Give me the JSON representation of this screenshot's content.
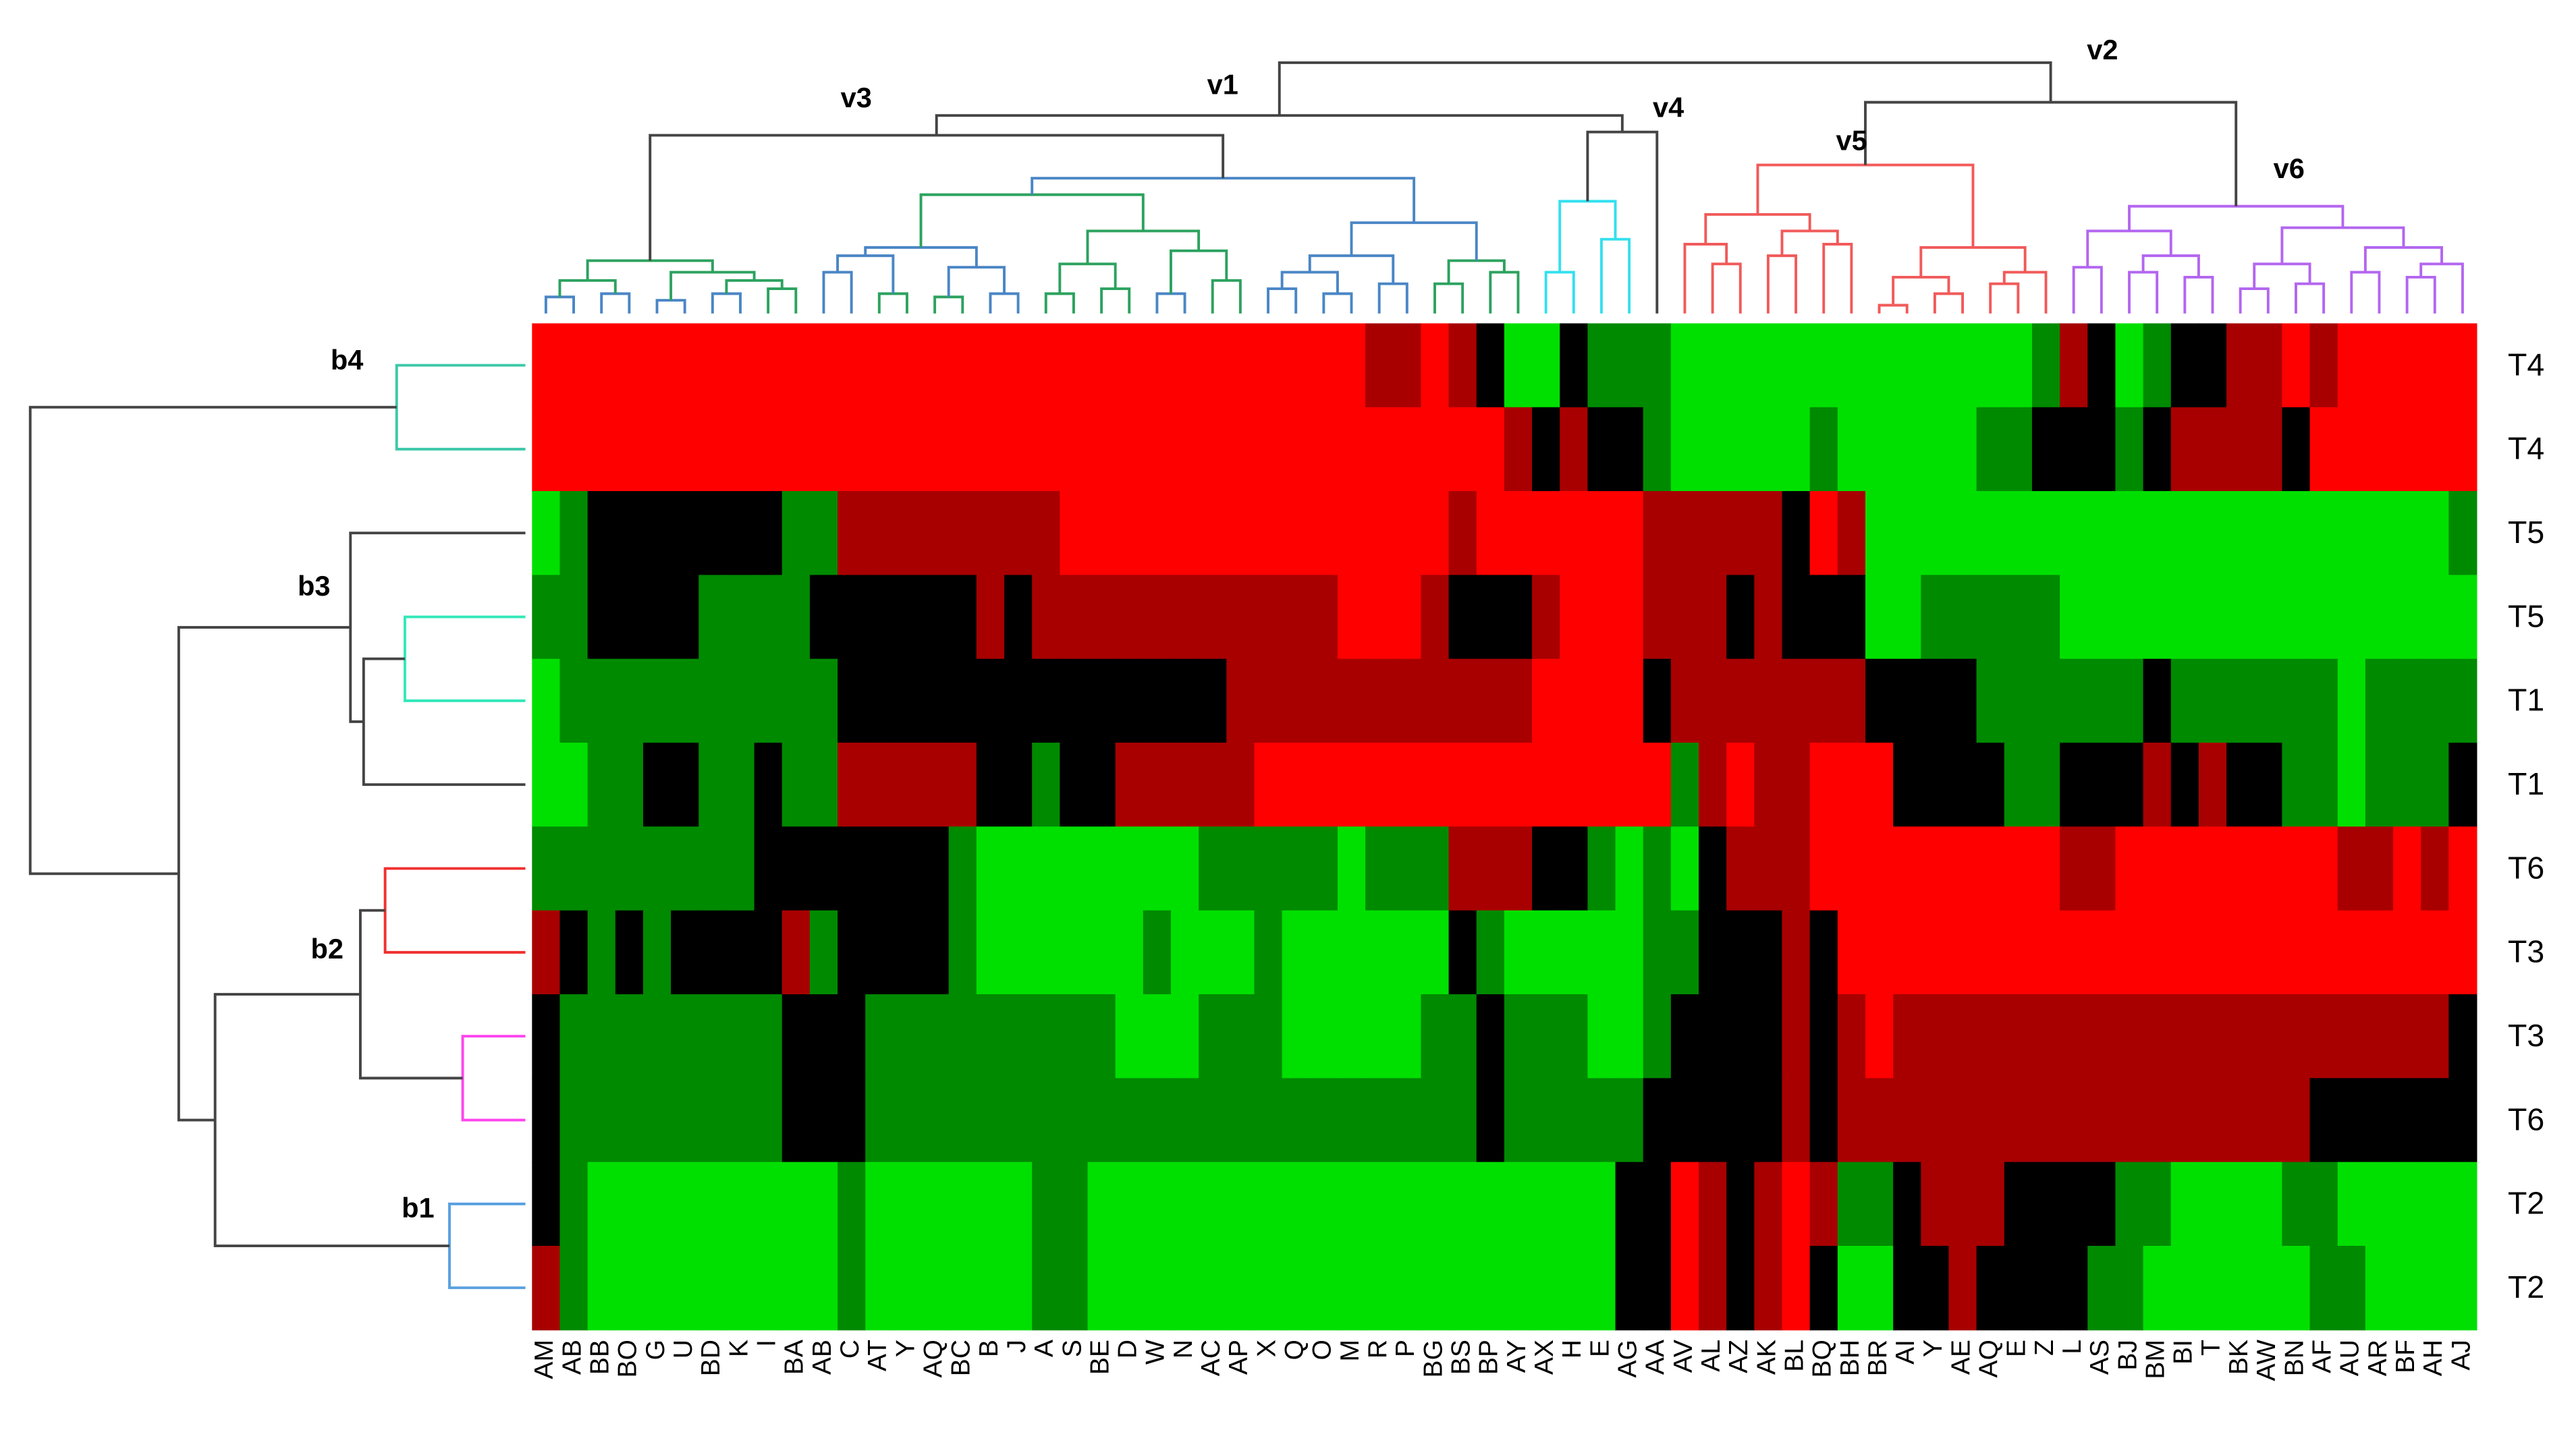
{
  "chart_data": {
    "type": "heatmap",
    "rows": [
      "T4",
      "T4",
      "T5",
      "T5",
      "T1",
      "T1",
      "T6",
      "T3",
      "T3",
      "T6",
      "T2",
      "T2"
    ],
    "columns": [
      "AM",
      "AB",
      "BB",
      "BO",
      "G",
      "U",
      "BD",
      "K",
      "I",
      "BA",
      "AB",
      "C",
      "AT",
      "Y",
      "AQ",
      "BC",
      "B",
      "J",
      "A",
      "S",
      "BE",
      "D",
      "W",
      "N",
      "AC",
      "AP",
      "X",
      "Q",
      "O",
      "M",
      "R",
      "P",
      "BG",
      "BS",
      "BP",
      "AY",
      "AX",
      "H",
      "E",
      "AG",
      "AA",
      "AV",
      "AL",
      "AZ",
      "AK",
      "BL",
      "BQ",
      "BH",
      "BR",
      "AI",
      "Y",
      "AE",
      "AQ",
      "E",
      "Z",
      "L",
      "AS",
      "BJ",
      "BM",
      "BI",
      "T",
      "BK",
      "AW",
      "BN",
      "AF",
      "AU",
      "AR",
      "BF",
      "AH",
      "AJ"
    ],
    "values": [
      [
        2,
        2,
        2,
        2,
        2,
        2,
        2,
        2,
        2,
        2,
        2,
        2,
        2,
        2,
        2,
        2,
        2,
        2,
        2,
        2,
        2,
        2,
        2,
        2,
        2,
        2,
        2,
        2,
        2,
        2,
        1,
        1,
        2,
        1,
        0,
        -2,
        -2,
        0,
        -1,
        -1,
        -1,
        -2,
        -2,
        -2,
        -2,
        -2,
        -2,
        -2,
        -2,
        -2,
        -2,
        -2,
        -2,
        -2,
        -1,
        1,
        0,
        -2,
        -1,
        0,
        0,
        1,
        1,
        2,
        1,
        2,
        2,
        2,
        2,
        2
      ],
      [
        2,
        2,
        2,
        2,
        2,
        2,
        2,
        2,
        2,
        2,
        2,
        2,
        2,
        2,
        2,
        2,
        2,
        2,
        2,
        2,
        2,
        2,
        2,
        2,
        2,
        2,
        2,
        2,
        2,
        2,
        2,
        2,
        2,
        2,
        2,
        1,
        0,
        1,
        0,
        0,
        -1,
        -2,
        -2,
        -2,
        -2,
        -2,
        -1,
        -2,
        -2,
        -2,
        -2,
        -2,
        -1,
        -1,
        0,
        0,
        0,
        -1,
        0,
        1,
        1,
        1,
        1,
        0,
        2,
        2,
        2,
        2,
        2,
        2
      ],
      [
        -2,
        -1,
        0,
        0,
        0,
        0,
        0,
        0,
        0,
        -1,
        -1,
        1,
        1,
        1,
        1,
        1,
        1,
        1,
        1,
        2,
        2,
        2,
        2,
        2,
        2,
        2,
        2,
        2,
        2,
        2,
        2,
        2,
        2,
        1,
        2,
        2,
        2,
        2,
        2,
        2,
        1,
        1,
        1,
        1,
        1,
        0,
        2,
        1,
        -2,
        -2,
        -2,
        -2,
        -2,
        -2,
        -2,
        -2,
        -2,
        -2,
        -2,
        -2,
        -2,
        -2,
        -2,
        -2,
        -2,
        -2,
        -2,
        -2,
        -2,
        -1
      ],
      [
        -1,
        -1,
        0,
        0,
        0,
        0,
        -1,
        -1,
        -1,
        -1,
        0,
        0,
        0,
        0,
        0,
        0,
        1,
        0,
        1,
        1,
        1,
        1,
        1,
        1,
        1,
        1,
        1,
        1,
        1,
        2,
        2,
        2,
        1,
        0,
        0,
        0,
        1,
        2,
        2,
        2,
        1,
        1,
        1,
        0,
        1,
        0,
        0,
        0,
        -2,
        -2,
        -1,
        -1,
        -1,
        -1,
        -1,
        -2,
        -2,
        -2,
        -2,
        -2,
        -2,
        -2,
        -2,
        -2,
        -2,
        -2,
        -2,
        -2,
        -2,
        -2
      ],
      [
        -2,
        -1,
        -1,
        -1,
        -1,
        -1,
        -1,
        -1,
        -1,
        -1,
        -1,
        0,
        0,
        0,
        0,
        0,
        0,
        0,
        0,
        0,
        0,
        0,
        0,
        0,
        0,
        1,
        1,
        1,
        1,
        1,
        1,
        1,
        1,
        1,
        1,
        1,
        2,
        2,
        2,
        2,
        0,
        1,
        1,
        1,
        1,
        1,
        1,
        1,
        0,
        0,
        0,
        0,
        -1,
        -1,
        -1,
        -1,
        -1,
        -1,
        0,
        -1,
        -1,
        -1,
        -1,
        -1,
        -1,
        -2,
        -1,
        -1,
        -1,
        -1
      ],
      [
        -2,
        -2,
        -1,
        -1,
        0,
        0,
        -1,
        -1,
        0,
        -1,
        -1,
        1,
        1,
        1,
        1,
        1,
        0,
        0,
        -1,
        0,
        0,
        1,
        1,
        1,
        1,
        1,
        2,
        2,
        2,
        2,
        2,
        2,
        2,
        2,
        2,
        2,
        2,
        2,
        2,
        2,
        2,
        -1,
        1,
        2,
        1,
        1,
        2,
        2,
        2,
        0,
        0,
        0,
        0,
        -1,
        -1,
        0,
        0,
        0,
        1,
        0,
        1,
        0,
        0,
        -1,
        -1,
        -2,
        -1,
        -1,
        -1,
        0
      ],
      [
        -1,
        -1,
        -1,
        -1,
        -1,
        -1,
        -1,
        -1,
        0,
        0,
        0,
        0,
        0,
        0,
        0,
        -1,
        -2,
        -2,
        -2,
        -2,
        -2,
        -2,
        -2,
        -2,
        -1,
        -1,
        -1,
        -1,
        -1,
        -2,
        -1,
        -1,
        -1,
        1,
        1,
        1,
        0,
        0,
        -1,
        -2,
        -1,
        -2,
        0,
        1,
        1,
        1,
        2,
        2,
        2,
        2,
        2,
        2,
        2,
        2,
        2,
        1,
        1,
        2,
        2,
        2,
        2,
        2,
        2,
        2,
        2,
        1,
        1,
        2,
        1,
        2
      ],
      [
        1,
        0,
        -1,
        0,
        -1,
        0,
        0,
        0,
        0,
        1,
        -1,
        0,
        0,
        0,
        0,
        -1,
        -2,
        -2,
        -2,
        -2,
        -2,
        -2,
        -1,
        -2,
        -2,
        -2,
        -1,
        -2,
        -2,
        -2,
        -2,
        -2,
        -2,
        0,
        -1,
        -2,
        -2,
        -2,
        -2,
        -2,
        -1,
        -1,
        0,
        0,
        0,
        1,
        0,
        2,
        2,
        2,
        2,
        2,
        2,
        2,
        2,
        2,
        2,
        2,
        2,
        2,
        2,
        2,
        2,
        2,
        2,
        2,
        2,
        2,
        2,
        2
      ],
      [
        0,
        -1,
        -1,
        -1,
        -1,
        -1,
        -1,
        -1,
        -1,
        0,
        0,
        0,
        -1,
        -1,
        -1,
        -1,
        -1,
        -1,
        -1,
        -1,
        -1,
        -2,
        -2,
        -2,
        -1,
        -1,
        -1,
        -2,
        -2,
        -2,
        -2,
        -2,
        -1,
        -1,
        0,
        -1,
        -1,
        -1,
        -2,
        -2,
        -1,
        0,
        0,
        0,
        0,
        1,
        0,
        1,
        2,
        1,
        1,
        1,
        1,
        1,
        1,
        1,
        1,
        1,
        1,
        1,
        1,
        1,
        1,
        1,
        1,
        1,
        1,
        1,
        1,
        0
      ],
      [
        0,
        -1,
        -1,
        -1,
        -1,
        -1,
        -1,
        -1,
        -1,
        0,
        0,
        0,
        -1,
        -1,
        -1,
        -1,
        -1,
        -1,
        -1,
        -1,
        -1,
        -1,
        -1,
        -1,
        -1,
        -1,
        -1,
        -1,
        -1,
        -1,
        -1,
        -1,
        -1,
        -1,
        0,
        -1,
        -1,
        -1,
        -1,
        -1,
        0,
        0,
        0,
        0,
        0,
        1,
        0,
        1,
        1,
        1,
        1,
        1,
        1,
        1,
        1,
        1,
        1,
        1,
        1,
        1,
        1,
        1,
        1,
        1,
        0,
        0,
        0,
        0,
        0,
        0
      ],
      [
        0,
        -1,
        -2,
        -2,
        -2,
        -2,
        -2,
        -2,
        -2,
        -2,
        -2,
        -1,
        -2,
        -2,
        -2,
        -2,
        -2,
        -2,
        -1,
        -1,
        -2,
        -2,
        -2,
        -2,
        -2,
        -2,
        -2,
        -2,
        -2,
        -2,
        -2,
        -2,
        -2,
        -2,
        -2,
        -2,
        -2,
        -2,
        -2,
        0,
        0,
        2,
        1,
        0,
        1,
        2,
        1,
        -1,
        -1,
        0,
        1,
        1,
        1,
        0,
        0,
        0,
        0,
        -1,
        -1,
        -2,
        -2,
        -2,
        -2,
        -1,
        -1,
        -2,
        -2,
        -2,
        -2,
        -2
      ],
      [
        1,
        -1,
        -2,
        -2,
        -2,
        -2,
        -2,
        -2,
        -2,
        -2,
        -2,
        -1,
        -2,
        -2,
        -2,
        -2,
        -2,
        -2,
        -1,
        -1,
        -2,
        -2,
        -2,
        -2,
        -2,
        -2,
        -2,
        -2,
        -2,
        -2,
        -2,
        -2,
        -2,
        -2,
        -2,
        -2,
        -2,
        -2,
        -2,
        0,
        0,
        2,
        1,
        0,
        1,
        2,
        0,
        -2,
        -2,
        0,
        0,
        1,
        0,
        0,
        0,
        0,
        -1,
        -1,
        -2,
        -2,
        -2,
        -2,
        -2,
        -2,
        -1,
        -1,
        -2,
        -2,
        -2,
        -2
      ]
    ],
    "color_scale": [
      {
        "value": -2,
        "color": "#00e000"
      },
      {
        "value": -1,
        "color": "#008a00"
      },
      {
        "value": 0,
        "color": "#000000"
      },
      {
        "value": 1,
        "color": "#a80000"
      },
      {
        "value": 2,
        "color": "#ff0000"
      }
    ],
    "column_clusters": [
      "v1",
      "v2",
      "v3",
      "v4",
      "v5",
      "v6"
    ],
    "row_clusters": [
      "b1",
      "b2",
      "b3",
      "b4"
    ]
  }
}
